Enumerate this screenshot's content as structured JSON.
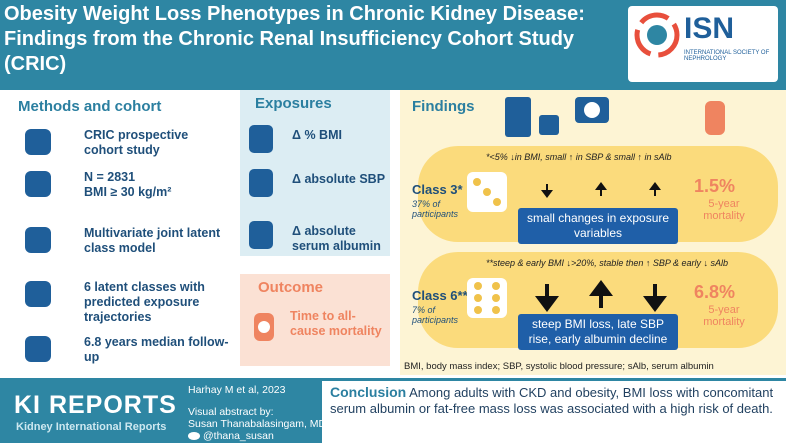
{
  "header": {
    "title": "Obesity Weight Loss Phenotypes in Chronic Kidney Disease: Findings from the Chronic Renal Insufficiency Cohort Study (CRIC)",
    "logo": {
      "name": "ISN",
      "subtitle": "INTERNATIONAL SOCIETY OF NEPHROLOGY"
    }
  },
  "methods": {
    "heading": "Methods and cohort",
    "items": [
      "CRIC prospective cohort study",
      "N = 2831\nBMI ≥ 30 kg/m²",
      "Multivariate joint latent class model",
      "6 latent classes with predicted exposure trajectories",
      "6.8 years median follow-up"
    ]
  },
  "exposures": {
    "heading": "Exposures",
    "items": [
      "Δ % BMI",
      "Δ absolute SBP",
      "Δ absolute serum albumin"
    ]
  },
  "outcome": {
    "heading": "Outcome",
    "text": "Time to all-cause mortality"
  },
  "findings": {
    "heading": "Findings",
    "classes": [
      {
        "label": "Class 3*",
        "share": "37% of participants",
        "note": "*<5% ↓in BMI, small ↑ in SBP & small ↑ in sAlb",
        "summary": "small changes in exposure variables",
        "rate": "1.5%",
        "rate_label": "5-year mortality"
      },
      {
        "label": "Class 6**",
        "share": "7% of participants",
        "note": "**steep & early BMI ↓>20%, stable then ↑ SBP & early ↓ sAlb",
        "summary": "steep BMI loss, late SBP rise, early albumin decline",
        "rate": "6.8%",
        "rate_label": "5-year mortality"
      }
    ],
    "footnote": "BMI, body mass index; SBP, systolic blood pressure; sAlb, serum albumin"
  },
  "footer": {
    "journal": "KI REPORTS",
    "journal_sub": "Kidney International Reports",
    "citation": "Harhay M et al, 2023",
    "credit": "Visual abstract by:",
    "author": "Susan Thanabalasingam, MD",
    "handle": "@thana_susan",
    "conclusion_heading": "Conclusion",
    "conclusion": "Among adults with CKD and obesity, BMI loss with concomitant serum albumin  or fat-free mass loss was associated with a high risk of death."
  }
}
